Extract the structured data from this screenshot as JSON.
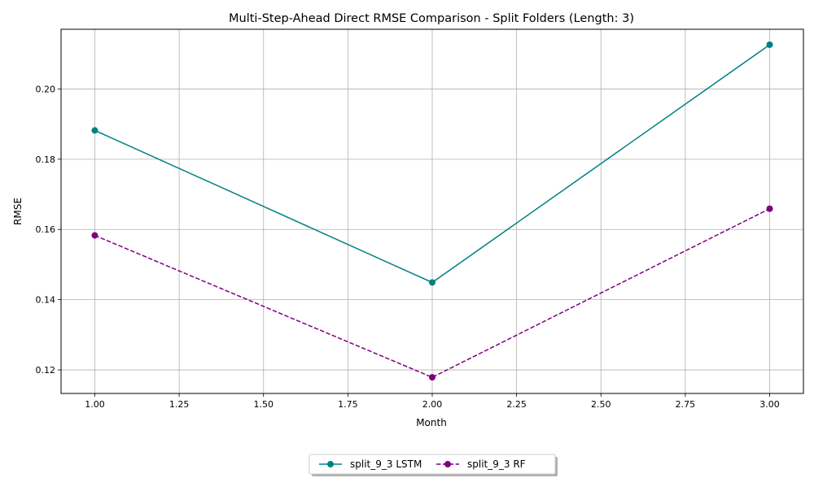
{
  "chart_data": {
    "type": "line",
    "title": "Multi-Step-Ahead Direct RMSE Comparison - Split Folders (Length: 3)",
    "xlabel": "Month",
    "ylabel": "RMSE",
    "xlim": [
      0.9,
      3.1
    ],
    "ylim": [
      0.1133,
      0.217
    ],
    "xticks": [
      1.0,
      1.25,
      1.5,
      1.75,
      2.0,
      2.25,
      2.5,
      2.75,
      3.0
    ],
    "xtick_labels": [
      "1.00",
      "1.25",
      "1.50",
      "1.75",
      "2.00",
      "2.25",
      "2.50",
      "2.75",
      "3.00"
    ],
    "yticks": [
      0.12,
      0.14,
      0.16,
      0.18,
      0.2
    ],
    "ytick_labels": [
      "0.12",
      "0.14",
      "0.16",
      "0.18",
      "0.20"
    ],
    "grid": true,
    "legend_position": "bottom-center, below plot",
    "series": [
      {
        "name": "split_9_3 LSTM",
        "x": [
          1,
          2,
          3
        ],
        "y": [
          0.1882,
          0.1449,
          0.2126
        ],
        "color": "#008080",
        "line_style": "solid",
        "marker": "circle"
      },
      {
        "name": "split_9_3 RF",
        "x": [
          1,
          2,
          3
        ],
        "y": [
          0.1583,
          0.1179,
          0.1659
        ],
        "color": "#800080",
        "line_style": "dashed",
        "marker": "circle"
      }
    ]
  }
}
